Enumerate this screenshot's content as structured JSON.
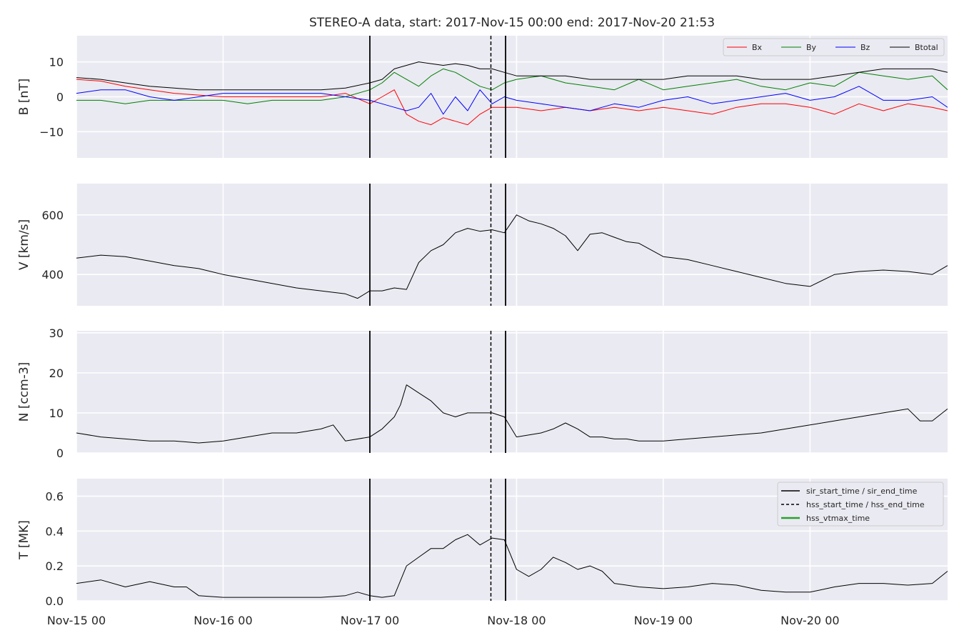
{
  "figure": {
    "title": "STEREO-A data, start: 2017-Nov-15 00:00  end: 2017-Nov-20 21:53"
  },
  "chart_data": [
    {
      "type": "line",
      "panel": "magnetic-field",
      "ylabel": "B [nT]",
      "ylim": [
        -17.5,
        17.5
      ],
      "yticks": [
        10,
        0,
        -10
      ],
      "ytick_labels": [
        "10",
        "0",
        "−10"
      ],
      "legend_placement": "top-right",
      "series": [
        {
          "name": "Bx",
          "color": "#ff0000",
          "x": [
            0,
            4,
            8,
            12,
            16,
            20,
            24,
            28,
            32,
            36,
            40,
            44,
            48,
            50,
            52,
            54,
            56,
            58,
            60,
            62,
            64,
            66,
            68,
            70,
            72,
            76,
            80,
            84,
            88,
            92,
            96,
            100,
            104,
            108,
            112,
            116,
            120,
            124,
            128,
            132,
            136,
            140,
            142.5
          ],
          "y": [
            5,
            4.5,
            3,
            2,
            1,
            0.5,
            0,
            0,
            0,
            0,
            0,
            1,
            -2,
            0,
            2,
            -5,
            -7,
            -8,
            -6,
            -7,
            -8,
            -5,
            -3,
            -3,
            -3,
            -4,
            -3,
            -4,
            -3,
            -4,
            -3,
            -4,
            -5,
            -3,
            -2,
            -2,
            -3,
            -5,
            -2,
            -4,
            -2,
            -3,
            -4
          ]
        },
        {
          "name": "By",
          "color": "#008000",
          "x": [
            0,
            4,
            8,
            12,
            16,
            20,
            24,
            28,
            32,
            36,
            40,
            44,
            48,
            50,
            52,
            54,
            56,
            58,
            60,
            62,
            64,
            66,
            68,
            70,
            72,
            76,
            80,
            84,
            88,
            92,
            96,
            100,
            104,
            108,
            112,
            116,
            120,
            124,
            128,
            132,
            136,
            140,
            142.5
          ],
          "y": [
            -1,
            -1,
            -2,
            -1,
            -1,
            -1,
            -1,
            -2,
            -1,
            -1,
            -1,
            0,
            2,
            4,
            7,
            5,
            3,
            6,
            8,
            7,
            5,
            3,
            2,
            4,
            5,
            6,
            4,
            3,
            2,
            5,
            2,
            3,
            4,
            5,
            3,
            2,
            4,
            3,
            7,
            6,
            5,
            6,
            2
          ]
        },
        {
          "name": "Bz",
          "color": "#0000ff",
          "x": [
            0,
            4,
            8,
            12,
            16,
            20,
            24,
            28,
            32,
            36,
            40,
            44,
            48,
            50,
            52,
            54,
            56,
            58,
            60,
            62,
            64,
            66,
            68,
            70,
            72,
            76,
            80,
            84,
            88,
            92,
            96,
            100,
            104,
            108,
            112,
            116,
            120,
            124,
            128,
            132,
            136,
            140,
            142.5
          ],
          "y": [
            1,
            2,
            2,
            0,
            -1,
            0,
            1,
            1,
            1,
            1,
            1,
            0,
            -1,
            -2,
            -3,
            -4,
            -3,
            1,
            -5,
            0,
            -4,
            2,
            -2,
            0,
            -1,
            -2,
            -3,
            -4,
            -2,
            -3,
            -1,
            0,
            -2,
            -1,
            0,
            1,
            -1,
            0,
            3,
            -1,
            -1,
            0,
            -3
          ]
        },
        {
          "name": "Btotal",
          "color": "#000000",
          "x": [
            0,
            4,
            8,
            12,
            16,
            20,
            24,
            28,
            32,
            36,
            40,
            44,
            48,
            50,
            52,
            54,
            56,
            58,
            60,
            62,
            64,
            66,
            68,
            70,
            72,
            76,
            80,
            84,
            88,
            92,
            96,
            100,
            104,
            108,
            112,
            116,
            120,
            124,
            128,
            132,
            136,
            140,
            142.5
          ],
          "y": [
            5.5,
            5,
            4,
            3,
            2.5,
            2,
            2,
            2,
            2,
            2,
            2,
            2.5,
            4,
            5,
            8,
            9,
            10,
            9.5,
            9,
            9.5,
            9,
            8,
            8,
            7,
            6,
            6,
            6,
            5,
            5,
            5,
            5,
            6,
            6,
            6,
            5,
            5,
            5,
            6,
            7,
            8,
            8,
            8,
            7
          ]
        }
      ]
    },
    {
      "type": "line",
      "panel": "speed",
      "ylabel": "V [km/s]",
      "ylim": [
        295,
        705
      ],
      "yticks": [
        600,
        400
      ],
      "ytick_labels": [
        "600",
        "400"
      ],
      "series": [
        {
          "name": "V",
          "color": "#000000",
          "x": [
            0,
            4,
            8,
            12,
            16,
            20,
            24,
            28,
            32,
            36,
            40,
            44,
            46,
            48,
            50,
            52,
            54,
            56,
            58,
            60,
            62,
            64,
            66,
            68,
            70,
            72,
            74,
            76,
            78,
            80,
            82,
            84,
            86,
            88,
            90,
            92,
            96,
            100,
            104,
            108,
            112,
            116,
            120,
            124,
            128,
            132,
            136,
            140,
            142.5
          ],
          "y": [
            455,
            465,
            460,
            445,
            430,
            420,
            400,
            385,
            370,
            355,
            345,
            335,
            320,
            345,
            345,
            355,
            350,
            440,
            480,
            500,
            540,
            555,
            545,
            550,
            540,
            600,
            580,
            570,
            555,
            530,
            480,
            535,
            540,
            525,
            510,
            505,
            460,
            450,
            430,
            410,
            390,
            370,
            360,
            400,
            410,
            415,
            410,
            400,
            430
          ]
        }
      ]
    },
    {
      "type": "line",
      "panel": "density",
      "ylabel": "N [ccm-3]",
      "ylim": [
        0,
        30.5
      ],
      "yticks": [
        30,
        20,
        10,
        0
      ],
      "ytick_labels": [
        "30",
        "20",
        "10",
        "0"
      ],
      "series": [
        {
          "name": "N",
          "color": "#000000",
          "x": [
            0,
            4,
            8,
            12,
            16,
            20,
            24,
            28,
            32,
            36,
            40,
            42,
            44,
            48,
            50,
            52,
            53,
            54,
            56,
            58,
            60,
            62,
            64,
            66,
            68,
            70,
            72,
            76,
            78,
            80,
            82,
            84,
            86,
            88,
            90,
            92,
            96,
            100,
            104,
            108,
            112,
            116,
            120,
            124,
            128,
            132,
            136,
            138,
            140,
            142.5
          ],
          "y": [
            5,
            4,
            3.5,
            3,
            3,
            2.5,
            3,
            4,
            5,
            5,
            6,
            7,
            3,
            4,
            6,
            9,
            12,
            17,
            15,
            13,
            10,
            9,
            10,
            10,
            10,
            9,
            4,
            5,
            6,
            7.5,
            6,
            4,
            4,
            3.5,
            3.5,
            3,
            3,
            3.5,
            4,
            4.5,
            5,
            6,
            7,
            8,
            9,
            10,
            11,
            8,
            8,
            11
          ]
        }
      ]
    },
    {
      "type": "line",
      "panel": "temperature",
      "ylabel": "T [MK]",
      "ylim": [
        0,
        0.7
      ],
      "yticks": [
        0.6,
        0.4,
        0.2,
        0.0
      ],
      "ytick_labels": [
        "0.6",
        "0.4",
        "0.2",
        "0.0"
      ],
      "legend_placement": "top-right",
      "series": [
        {
          "name": "T",
          "color": "#000000",
          "x": [
            0,
            4,
            8,
            12,
            16,
            18,
            20,
            24,
            28,
            32,
            36,
            40,
            44,
            46,
            48,
            50,
            52,
            54,
            56,
            58,
            60,
            62,
            64,
            66,
            68,
            70,
            72,
            74,
            76,
            78,
            80,
            82,
            84,
            86,
            88,
            90,
            92,
            96,
            100,
            104,
            108,
            112,
            116,
            120,
            124,
            128,
            132,
            136,
            140,
            142.5
          ],
          "y": [
            0.1,
            0.12,
            0.08,
            0.11,
            0.08,
            0.08,
            0.03,
            0.02,
            0.02,
            0.02,
            0.02,
            0.02,
            0.03,
            0.05,
            0.03,
            0.02,
            0.03,
            0.2,
            0.25,
            0.3,
            0.3,
            0.35,
            0.38,
            0.32,
            0.36,
            0.35,
            0.18,
            0.14,
            0.18,
            0.25,
            0.22,
            0.18,
            0.2,
            0.17,
            0.1,
            0.09,
            0.08,
            0.07,
            0.08,
            0.1,
            0.09,
            0.06,
            0.05,
            0.05,
            0.08,
            0.1,
            0.1,
            0.09,
            0.1,
            0.17
          ]
        }
      ]
    }
  ],
  "x_axis": {
    "range_hours": [
      0,
      142.5
    ],
    "ticks": [
      0,
      24,
      48,
      72,
      96,
      120
    ],
    "tick_labels": [
      "Nov-15 00",
      "Nov-16 00",
      "Nov-17 00",
      "Nov-18 00",
      "Nov-19 00",
      "Nov-20 00"
    ]
  },
  "event_lines": {
    "sir_times": [
      48,
      70.2
    ],
    "hss_start": 67.8
  },
  "legend_bottom": [
    {
      "label": "sir_start_time / sir_end_time",
      "color": "#000000",
      "style": "solid"
    },
    {
      "label": "hss_start_time / hss_end_time",
      "color": "#000000",
      "style": "dashed"
    },
    {
      "label": "hss_vtmax_time",
      "color": "#2ca02c",
      "style": "solid"
    }
  ],
  "colors": {
    "panel_bg": "#eaeaf2",
    "grid": "#ffffff"
  }
}
